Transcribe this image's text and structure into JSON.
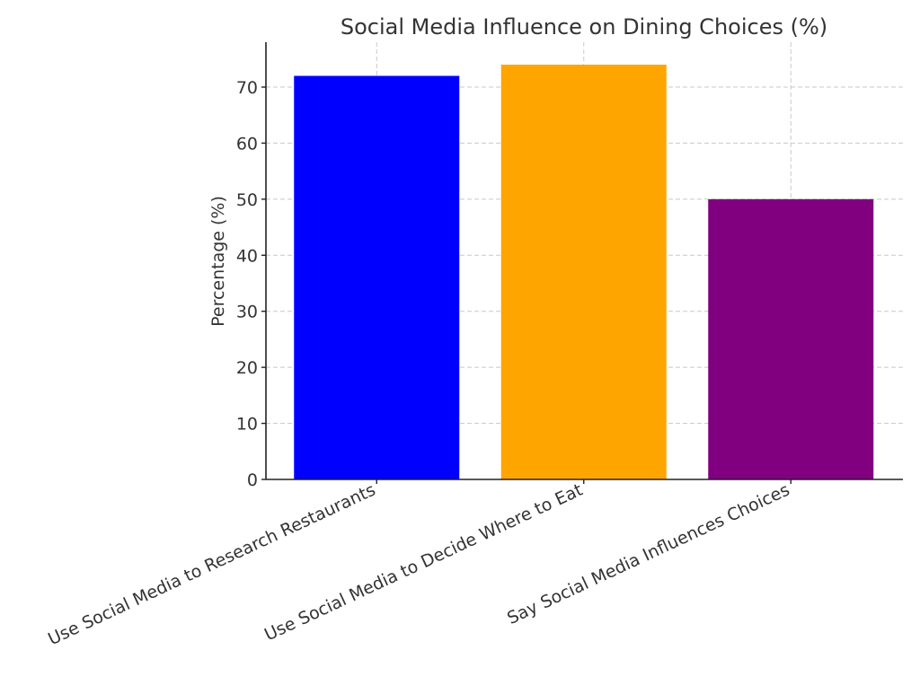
{
  "chart_data": {
    "type": "bar",
    "title": "Social Media Influence on Dining Choices (%)",
    "xlabel": "",
    "ylabel": "Percentage (%)",
    "categories": [
      "Use Social Media to Research Restaurants",
      "Use Social Media to Decide Where to Eat",
      "Say Social Media Influences Choices"
    ],
    "values": [
      72,
      74,
      50
    ],
    "colors": [
      "#0000ff",
      "#ffa500",
      "#800080"
    ],
    "ylim": [
      0,
      78
    ],
    "yticks": [
      0,
      10,
      20,
      30,
      40,
      50,
      60,
      70
    ],
    "grid": true,
    "legend": "none"
  }
}
